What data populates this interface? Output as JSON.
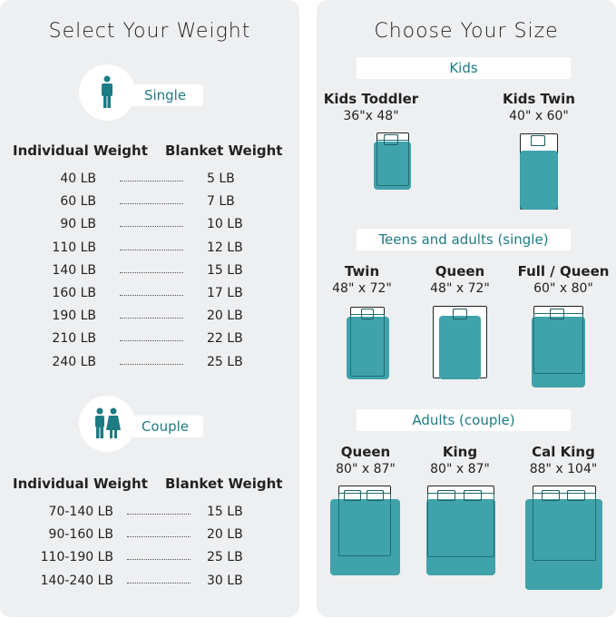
{
  "weight": {
    "title": "Select Your Weight",
    "single": {
      "label": "Single",
      "col1": "Individual Weight",
      "col2": "Blanket Weight",
      "rows": [
        [
          "40 LB",
          "5 LB"
        ],
        [
          "60 LB",
          "7 LB"
        ],
        [
          "90 LB",
          "10 LB"
        ],
        [
          "110 LB",
          "12 LB"
        ],
        [
          "140 LB",
          "15 LB"
        ],
        [
          "160 LB",
          "17 LB"
        ],
        [
          "190 LB",
          "20 LB"
        ],
        [
          "210 LB",
          "22 LB"
        ],
        [
          "240 LB",
          "25 LB"
        ]
      ]
    },
    "couple": {
      "label": "Couple",
      "col1": "Individual Weight",
      "col2": "Blanket Weight",
      "rows": [
        [
          "70-140 LB",
          "15 LB"
        ],
        [
          "90-160 LB",
          "20 LB"
        ],
        [
          "110-190 LB",
          "25 LB"
        ],
        [
          "140-240 LB",
          "30 LB"
        ]
      ]
    }
  },
  "size": {
    "title": "Choose Your Size",
    "sections": [
      "Kids",
      "Teens and adults (single)",
      "Adults (couple)"
    ],
    "beds": [
      {
        "name": "Kids Toddler",
        "dims": "36\"x 48\""
      },
      {
        "name": "Kids Twin",
        "dims": "40\" x 60\""
      },
      {
        "name": "Twin",
        "dims": "48\" x 72\""
      },
      {
        "name": "Queen",
        "dims": "48\" x 72\""
      },
      {
        "name": "Full / Queen",
        "dims": "60\" x 80\""
      },
      {
        "name": "Queen",
        "dims": "80\" x 87\""
      },
      {
        "name": "King",
        "dims": "80\" x 87\""
      },
      {
        "name": "Cal King",
        "dims": "88\" x 104\""
      }
    ],
    "blanket_color": "#3a9fa8"
  },
  "accent": "#1d7b84"
}
